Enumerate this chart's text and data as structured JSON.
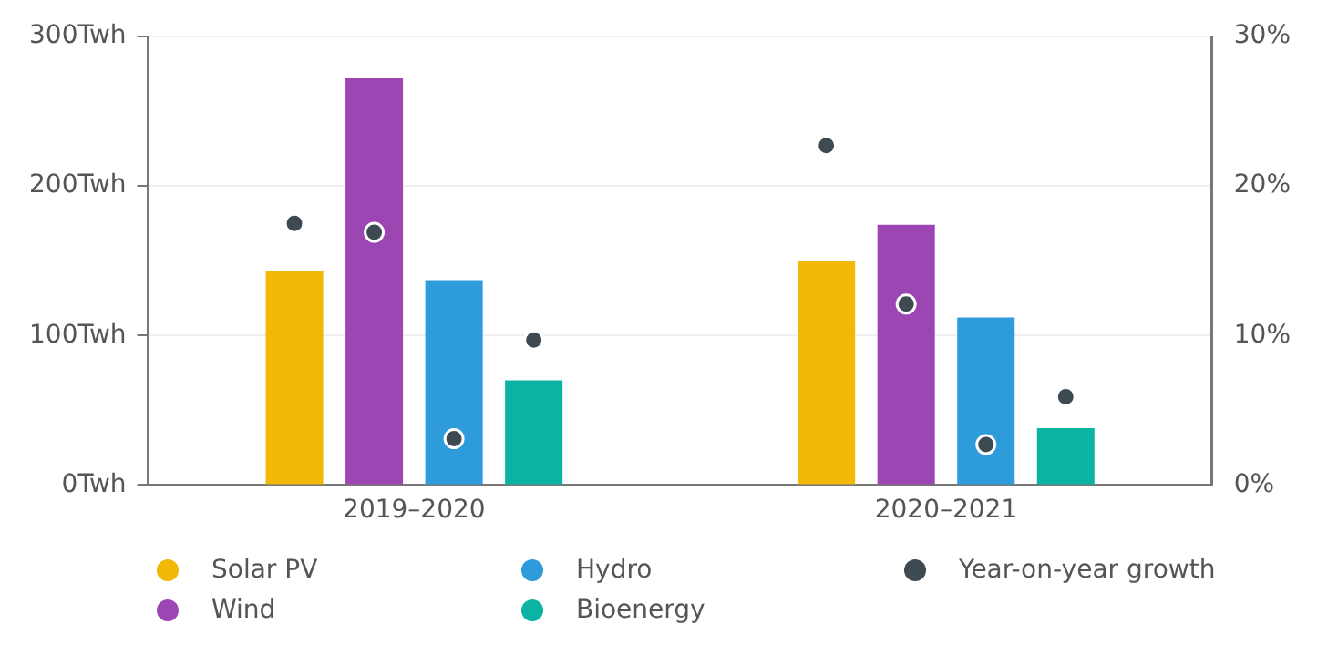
{
  "chart_data": {
    "type": "bar",
    "categories": [
      "2019–2020",
      "2020–2021"
    ],
    "series": [
      {
        "name": "Solar PV",
        "color": "#f2b807",
        "values": [
          143,
          150
        ]
      },
      {
        "name": "Wind",
        "color": "#9c46b4",
        "values": [
          272,
          174
        ]
      },
      {
        "name": "Hydro",
        "color": "#2e9bdb",
        "values": [
          137,
          112
        ]
      },
      {
        "name": "Bioenergy",
        "color": "#0bb3a3",
        "values": [
          70,
          38
        ]
      },
      {
        "name": "Year-on-year growth",
        "type": "scatter",
        "axis": "y2",
        "color": "#3d4a52",
        "values": [
          17.5,
          22.7
        ]
      },
      {
        "type": "scatter",
        "axis": "y2",
        "color": "#3d4a52",
        "values": [
          16.9,
          12.1
        ]
      },
      {
        "type": "scatter",
        "axis": "y2",
        "color": "#3d4a52",
        "values": [
          3.1,
          2.7
        ]
      },
      {
        "type": "scatter",
        "axis": "y2",
        "color": "#3d4a52",
        "values": [
          9.7,
          5.9
        ]
      }
    ],
    "ylim": [
      0,
      300
    ],
    "yticks": [
      {
        "value": 0,
        "label": "0Twh"
      },
      {
        "value": 100,
        "label": "100Twh"
      },
      {
        "value": 200,
        "label": "200Twh"
      },
      {
        "value": 300,
        "label": "300Twh"
      }
    ],
    "y2lim": [
      0,
      30
    ],
    "y2ticks": [
      {
        "value": 0,
        "label": "0%"
      },
      {
        "value": 10,
        "label": "10%"
      },
      {
        "value": 20,
        "label": "20%"
      },
      {
        "value": 30,
        "label": "30%"
      }
    ],
    "grid": "y",
    "legend": "bottom",
    "marker": "circle"
  }
}
